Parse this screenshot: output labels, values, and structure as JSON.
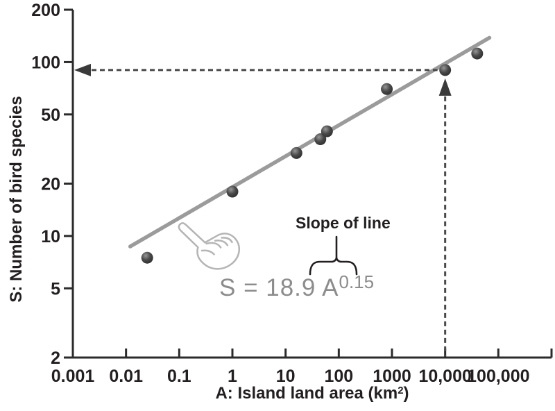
{
  "colors": {
    "background": "#ffffff",
    "axis": "#2b2b2b",
    "text": "#231f20",
    "regression_line": "#9b9b9b",
    "point_gradient": [
      "#979797",
      "#4a4a4a",
      "#232323"
    ],
    "dashed_line": "#4a4a4a",
    "arrowhead": "#3a3a3a",
    "equation_text": "#8c8c8c",
    "brace": "#231f20",
    "hand_outline": "#b5b5b5"
  },
  "chart_data": {
    "type": "scatter",
    "x_scale": "log",
    "y_scale": "log",
    "xlim": [
      0.001,
      1000000
    ],
    "ylim": [
      2,
      200
    ],
    "grid": false,
    "legend": null,
    "xlabel": "A: Island land area (km2)",
    "xlabel_parts": {
      "prefix": "A: Island land area (km",
      "superscript": "2",
      "suffix": ")"
    },
    "ylabel": "S: Number of bird species",
    "x_ticks": [
      {
        "value": 0.001,
        "label": "0.001"
      },
      {
        "value": 0.01,
        "label": "0.01"
      },
      {
        "value": 0.1,
        "label": "0.1"
      },
      {
        "value": 1,
        "label": "1"
      },
      {
        "value": 10,
        "label": "10"
      },
      {
        "value": 100,
        "label": "100"
      },
      {
        "value": 1000,
        "label": "1000"
      },
      {
        "value": 10000,
        "label": "10,000"
      },
      {
        "value": 100000,
        "label": "100,000"
      },
      {
        "value": 1000000,
        "label": ""
      }
    ],
    "y_ticks": [
      {
        "value": 2,
        "label": "2"
      },
      {
        "value": 5,
        "label": "5"
      },
      {
        "value": 10,
        "label": "10"
      },
      {
        "value": 20,
        "label": "20"
      },
      {
        "value": 50,
        "label": "50"
      },
      {
        "value": 100,
        "label": "100"
      },
      {
        "value": 200,
        "label": "200"
      }
    ],
    "points": [
      {
        "A": 0.025,
        "S": 7.5
      },
      {
        "A": 1,
        "S": 18
      },
      {
        "A": 16,
        "S": 30
      },
      {
        "A": 45,
        "S": 36
      },
      {
        "A": 60,
        "S": 40
      },
      {
        "A": 800,
        "S": 70
      },
      {
        "A": 10000,
        "S": 90
      },
      {
        "A": 40000,
        "S": 112
      }
    ],
    "regression_line": {
      "from": {
        "A": 0.012,
        "S": 8.7
      },
      "to": {
        "A": 68000,
        "S": 138
      }
    },
    "highlight_point": {
      "A": 10000,
      "S": 90
    },
    "annotations": {
      "slope_label": "Slope of line",
      "equation_base": "S = 18.9 A",
      "equation_exponent": "0.15"
    }
  }
}
